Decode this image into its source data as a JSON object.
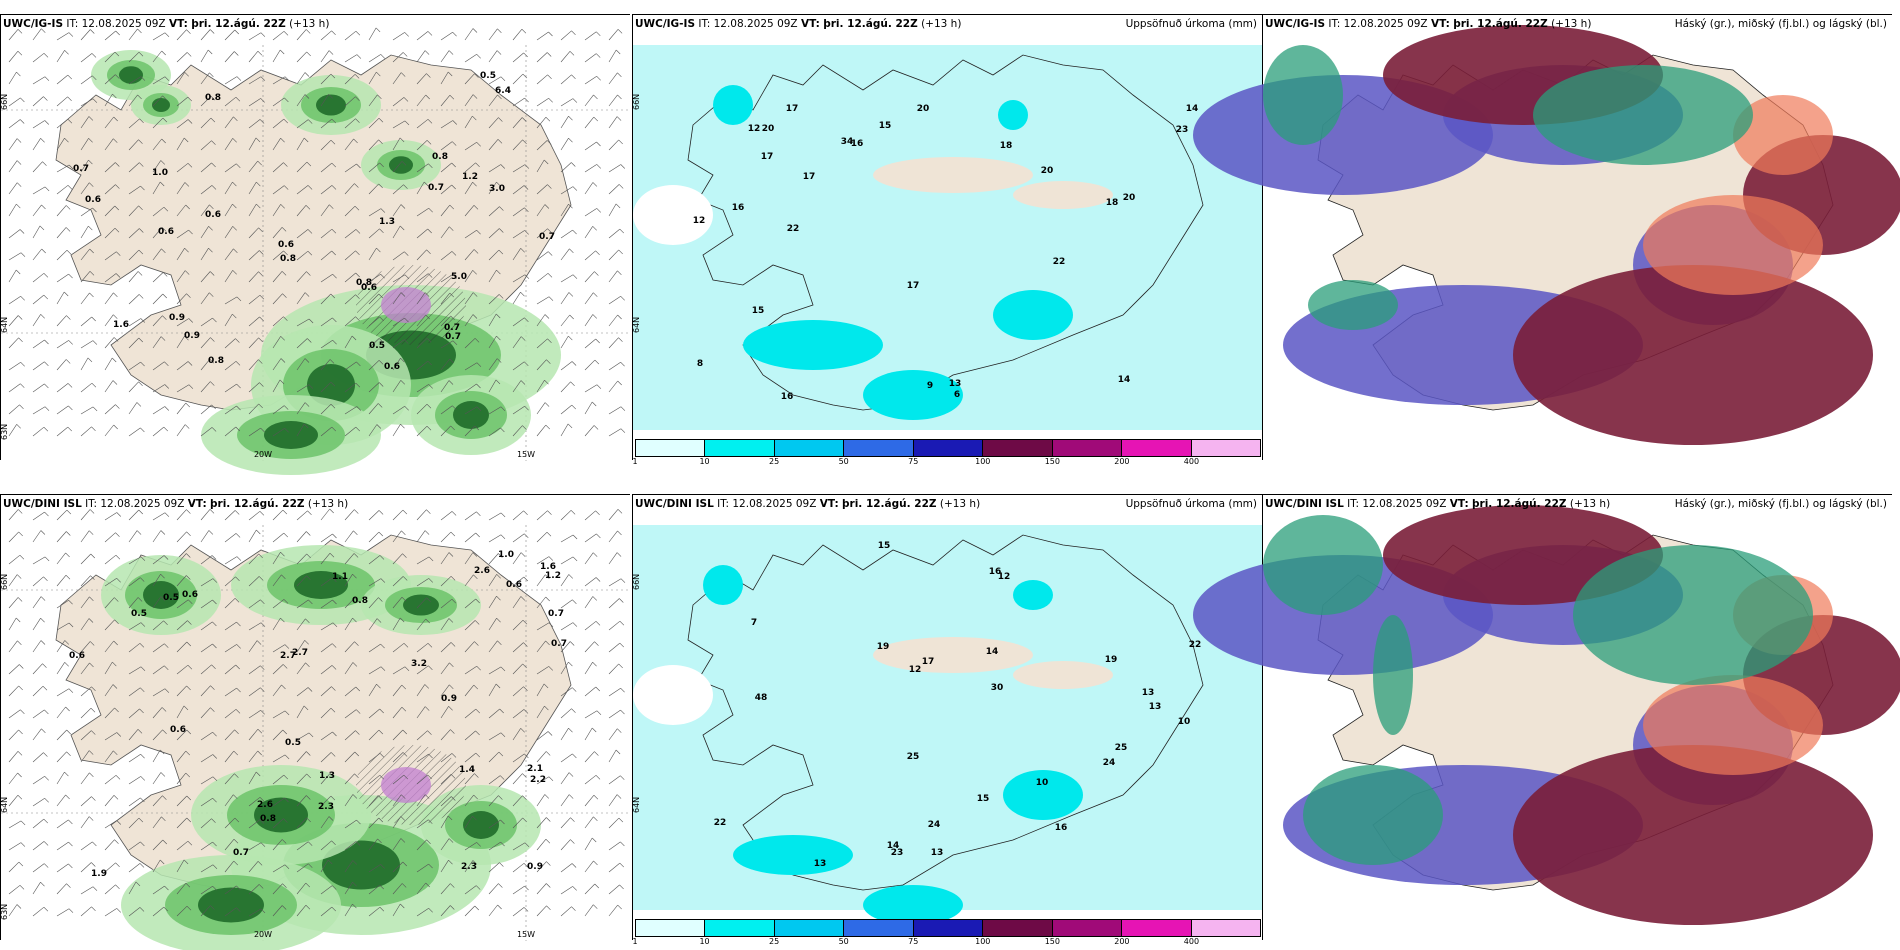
{
  "panels": [
    {
      "model": "UWC/IG-IS",
      "it_prefix": "IT:",
      "it": "12.08.2025 09Z",
      "vt_prefix": "VT:",
      "vt": "þri. 12.ágú. 22Z",
      "lead": "(+13 h)",
      "right_title": "",
      "kind": "precip-wind",
      "axis": {
        "lat_top": "66N",
        "lat_mid": "64N",
        "lat_bot": "63N",
        "lon_w20": "20W",
        "lon_w15": "15W"
      },
      "values": [
        "0.6",
        "0.8",
        "0.9",
        "1.0",
        "1.2",
        "0.5",
        "0.7",
        "0.6",
        "0.8",
        "0.9",
        "1.6",
        "0.7",
        "0.6",
        "0.8",
        "0.7",
        "0.5",
        "0.6",
        "6.4",
        "5.0",
        "3.0",
        "0.7",
        "0.6",
        "0.8",
        "0.7",
        "1.3",
        "0.8",
        "0.6"
      ]
    },
    {
      "model": "UWC/IG-IS",
      "it_prefix": "IT:",
      "it": "12.08.2025 09Z",
      "vt_prefix": "VT:",
      "vt": "þri. 12.ágú. 22Z",
      "lead": "(+13 h)",
      "right_title": "Uppsöfnuð úrkoma (mm)",
      "kind": "accum",
      "axis": {
        "lat_top": "66N",
        "lat_mid": "64N"
      },
      "values": [
        "6",
        "9",
        "8",
        "13",
        "22",
        "17",
        "18",
        "16",
        "17",
        "20",
        "22",
        "23",
        "20",
        "16",
        "17",
        "20",
        "17",
        "16",
        "20",
        "14",
        "18",
        "34",
        "15",
        "14",
        "12",
        "12",
        "15"
      ]
    },
    {
      "model": "UWC/IG-IS",
      "it_prefix": "IT:",
      "it": "12.08.2025 09Z",
      "vt_prefix": "VT:",
      "vt": "þri. 12.ágú. 22Z",
      "lead": "(+13 h)",
      "right_title": "Háský (gr.), miðský (fj.bl.) og lágský (bl.)",
      "kind": "clouds",
      "axis": {},
      "values": []
    },
    {
      "model": "UWC/DINI ISL",
      "it_prefix": "IT:",
      "it": "12.08.2025 09Z",
      "vt_prefix": "VT:",
      "vt": "þri. 12.ágú. 22Z",
      "lead": "(+13 h)",
      "right_title": "",
      "kind": "precip-wind",
      "axis": {
        "lat_top": "66N",
        "lat_mid": "64N",
        "lat_bot": "63N",
        "lon_w20": "20W",
        "lon_w15": "15W"
      },
      "values": [
        "0.6",
        "1.4",
        "0.8",
        "0.5",
        "1.1",
        "2.7",
        "2.2",
        "1.6",
        "0.8",
        "0.9",
        "0.7",
        "2.3",
        "2.7",
        "1.9",
        "1.2",
        "0.6",
        "0.5",
        "0.6",
        "1.3",
        "2.6",
        "2.1",
        "3.2",
        "2.3",
        "2.6",
        "0.9",
        "1.0",
        "0.7",
        "0.6",
        "0.5",
        "0.7"
      ]
    },
    {
      "model": "UWC/DINI ISL",
      "it_prefix": "IT:",
      "it": "12.08.2025 09Z",
      "vt_prefix": "VT:",
      "vt": "þri. 12.ágú. 22Z",
      "lead": "(+13 h)",
      "right_title": "Uppsöfnuð úrkoma (mm)",
      "kind": "accum",
      "axis": {
        "lat_top": "66N",
        "lat_mid": "64N"
      },
      "values": [
        "7",
        "10",
        "19",
        "24",
        "17",
        "22",
        "30",
        "25",
        "14",
        "19",
        "25",
        "16",
        "13",
        "15",
        "15",
        "13",
        "14",
        "10",
        "12",
        "24",
        "22",
        "23",
        "16",
        "12",
        "48",
        "13",
        "13"
      ]
    },
    {
      "model": "UWC/DINI ISL",
      "it_prefix": "IT:",
      "it": "12.08.2025 09Z",
      "vt_prefix": "VT:",
      "vt": "þri. 12.ágú. 22Z",
      "lead": "(+13 h)",
      "right_title": "Háský (gr.), miðský (fj.bl.) og lágský (bl.)",
      "kind": "clouds",
      "axis": {},
      "values": []
    }
  ],
  "legend": {
    "ticks": [
      "1",
      "10",
      "25",
      "50",
      "75",
      "100",
      "150",
      "200",
      "400"
    ],
    "colors": [
      "#e0ffff",
      "#00f0f0",
      "#00c8f0",
      "#2e6ae6",
      "#1a1ab4",
      "#6e0a46",
      "#a00a78",
      "#e614b4",
      "#f5b4f0"
    ]
  }
}
